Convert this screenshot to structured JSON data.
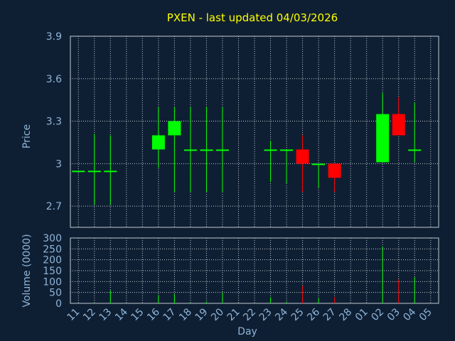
{
  "title": "PXEN - last updated 04/03/2026",
  "colors": {
    "background": "#0f1f33",
    "panel": "#0f1f33",
    "title": "#ffff00",
    "axis_text": "#8fb5d8",
    "grid": "#c0c8d0",
    "up": "#00ff00",
    "down": "#ff0000"
  },
  "chart_data": [
    {
      "type": "candlestick",
      "title": "PXEN - last updated 04/03/2026",
      "ylabel": "Price",
      "ylim": [
        2.55,
        3.9
      ],
      "yticks": [
        2.7,
        3,
        3.3,
        3.6,
        3.9
      ],
      "ytick_labels": [
        "2.7",
        "3",
        "3.3",
        "3.6",
        "3.9"
      ],
      "grid": true,
      "candles": [
        {
          "day": "11",
          "open": 2.95,
          "high": 2.95,
          "low": 2.95,
          "close": 2.95,
          "color": "up"
        },
        {
          "day": "12",
          "open": 2.95,
          "high": 3.21,
          "low": 2.71,
          "close": 2.95,
          "color": "up"
        },
        {
          "day": "13",
          "open": 2.95,
          "high": 3.2,
          "low": 2.71,
          "close": 2.95,
          "color": "up"
        },
        {
          "day": "14",
          "open": null,
          "high": null,
          "low": null,
          "close": null
        },
        {
          "day": "15",
          "open": null,
          "high": null,
          "low": null,
          "close": null
        },
        {
          "day": "16",
          "open": 3.1,
          "high": 3.4,
          "low": 2.97,
          "close": 3.2,
          "color": "up"
        },
        {
          "day": "17",
          "open": 3.2,
          "high": 3.4,
          "low": 2.8,
          "close": 3.3,
          "color": "up"
        },
        {
          "day": "18",
          "open": 3.1,
          "high": 3.4,
          "low": 2.8,
          "close": 3.1,
          "color": "up"
        },
        {
          "day": "19",
          "open": 3.1,
          "high": 3.4,
          "low": 2.8,
          "close": 3.1,
          "color": "up"
        },
        {
          "day": "20",
          "open": 3.1,
          "high": 3.4,
          "low": 2.8,
          "close": 3.1,
          "color": "up"
        },
        {
          "day": "21",
          "open": null,
          "high": null,
          "low": null,
          "close": null
        },
        {
          "day": "22",
          "open": null,
          "high": null,
          "low": null,
          "close": null
        },
        {
          "day": "23",
          "open": 3.1,
          "high": 3.16,
          "low": 2.87,
          "close": 3.1,
          "color": "up"
        },
        {
          "day": "24",
          "open": 3.1,
          "high": 3.1,
          "low": 2.86,
          "close": 3.1,
          "color": "up"
        },
        {
          "day": "25",
          "open": 3.1,
          "high": 3.2,
          "low": 2.8,
          "close": 3.0,
          "color": "down"
        },
        {
          "day": "26",
          "open": 3.0,
          "high": 3.0,
          "low": 2.83,
          "close": 3.0,
          "color": "up"
        },
        {
          "day": "27",
          "open": 3.0,
          "high": 3.0,
          "low": 2.8,
          "close": 2.9,
          "color": "down"
        },
        {
          "day": "28",
          "open": null,
          "high": null,
          "low": null,
          "close": null
        },
        {
          "day": "01",
          "open": null,
          "high": null,
          "low": null,
          "close": null
        },
        {
          "day": "02",
          "open": 3.01,
          "high": 3.5,
          "low": 3.01,
          "close": 3.35,
          "color": "up"
        },
        {
          "day": "03",
          "open": 3.35,
          "high": 3.47,
          "low": 3.2,
          "close": 3.2,
          "color": "down"
        },
        {
          "day": "04",
          "open": 3.1,
          "high": 3.43,
          "low": 3.01,
          "close": 3.1,
          "color": "up"
        },
        {
          "day": "05",
          "open": null,
          "high": null,
          "low": null,
          "close": null
        }
      ]
    },
    {
      "type": "bar",
      "ylabel": "Volume (0000)",
      "xlabel": "Day",
      "ylim": [
        0,
        300
      ],
      "yticks": [
        0,
        50,
        100,
        150,
        200,
        250,
        300
      ],
      "ytick_labels": [
        "0",
        "50",
        "100",
        "150",
        "200",
        "250",
        "300"
      ],
      "grid": true,
      "categories": [
        "11",
        "12",
        "13",
        "14",
        "15",
        "16",
        "17",
        "18",
        "19",
        "20",
        "21",
        "22",
        "23",
        "24",
        "25",
        "26",
        "27",
        "28",
        "01",
        "02",
        "03",
        "04",
        "05"
      ],
      "values": [
        0,
        2,
        60,
        0,
        0,
        38,
        42,
        3,
        8,
        50,
        0,
        0,
        28,
        8,
        80,
        25,
        28,
        0,
        0,
        260,
        110,
        120,
        0
      ],
      "colors": [
        "up",
        "up",
        "up",
        "up",
        "up",
        "up",
        "up",
        "up",
        "up",
        "up",
        "up",
        "up",
        "up",
        "up",
        "down",
        "up",
        "down",
        "up",
        "up",
        "up",
        "down",
        "up",
        "up"
      ]
    }
  ]
}
